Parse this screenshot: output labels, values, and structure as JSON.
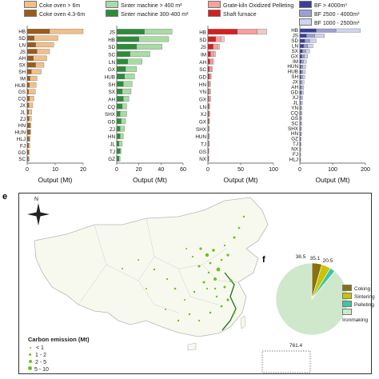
{
  "chart_data": [
    {
      "type": "bar",
      "orientation": "horizontal",
      "stacked": true,
      "legend": [
        "Coke oven > 6m",
        "Coke oven 4.3-6m"
      ],
      "colors": [
        "#f0c08a",
        "#9a5c1c"
      ],
      "categories": [
        "HB",
        "SD",
        "LN",
        "JS",
        "AH",
        "SX",
        "SH",
        "IM",
        "HUB",
        "GS",
        "CQ",
        "JX",
        "JL",
        "ZJ",
        "HN",
        "HUN",
        "HLJ",
        "FJ",
        "GD",
        "SC"
      ],
      "series": [
        {
          "name": "Coke oven 4.3-6m",
          "values": [
            8.0,
            2.5,
            3.0,
            3.5,
            2.2,
            3.0,
            1.5,
            1.0,
            0.8,
            0.5,
            0.8,
            0.6,
            0.5,
            0.7,
            1.0,
            1.0,
            0.7,
            0.5,
            0.5,
            0.4
          ]
        },
        {
          "name": "Coke oven > 6m",
          "values": [
            12.0,
            8.5,
            6.5,
            4.5,
            4.8,
            3.0,
            3.5,
            2.5,
            2.4,
            2.4,
            1.6,
            1.4,
            1.1,
            0.8,
            0.4,
            0.3,
            0.4,
            0.4,
            0.3,
            0.3
          ]
        }
      ],
      "xlim": [
        0,
        20
      ],
      "xticks": [
        "0",
        "10",
        "20"
      ],
      "xlabel": "Output (Mt)"
    },
    {
      "type": "bar",
      "orientation": "horizontal",
      "stacked": true,
      "legend": [
        "Sinter machine > 400 m²",
        "Sinter machine 300-400 m²"
      ],
      "colors": [
        "#a9dba4",
        "#2e8b3c"
      ],
      "categories": [
        "JS",
        "HB",
        "SD",
        "SC",
        "LN",
        "GX",
        "HUB",
        "SH",
        "SX",
        "AH",
        "CQ",
        "SHX",
        "GD",
        "ZJ",
        "HN",
        "JL",
        "TJ",
        "GZ"
      ],
      "series": [
        {
          "name": "Sinter machine 300-400 m²",
          "values": [
            25,
            20,
            18,
            12,
            10,
            8,
            7,
            6,
            5,
            6,
            5,
            3,
            4,
            3,
            3,
            2,
            3,
            2
          ]
        },
        {
          "name": "Sinter machine > 400 m²",
          "values": [
            25,
            27,
            23,
            18,
            13,
            10,
            9,
            8,
            8,
            5,
            4,
            6,
            4,
            4,
            3,
            3,
            1,
            1
          ]
        }
      ],
      "xlim": [
        0,
        60
      ],
      "xticks": [
        "0",
        "20",
        "40",
        "60"
      ],
      "xlabel": "Output (Mt)"
    },
    {
      "type": "bar",
      "orientation": "horizontal",
      "stacked": true,
      "legend": [
        "Grate-kiln Oxidized Pelleting",
        "Shaft furnace"
      ],
      "colors": [
        "#f6a0a0",
        "#d42020",
        "#f2c8c8"
      ],
      "categories": [
        "HB",
        "SD",
        "JS",
        "IM",
        "AH",
        "SC",
        "GD",
        "HN",
        "YN",
        "GX",
        "LN",
        "XJ",
        "GX",
        "SHX",
        "HUN",
        "TJ",
        "GS",
        "NX"
      ],
      "series": [
        {
          "name": "Shaft furnace",
          "values": [
            45,
            12,
            8,
            4,
            3,
            2,
            2,
            1,
            1,
            1,
            1,
            1,
            1,
            0.5,
            0.5,
            0.5,
            0.5,
            0.5
          ]
        },
        {
          "name": "Grate-kiln Oxidized Pelleting",
          "values": [
            30,
            8,
            7,
            5,
            4,
            3,
            2,
            2,
            2,
            2,
            1,
            1,
            1,
            1,
            1,
            1,
            0.5,
            0.5
          ]
        },
        {
          "name": "",
          "values": [
            15,
            5,
            3,
            3,
            2,
            2,
            1,
            1,
            1,
            1,
            1,
            1,
            0.5,
            0.5,
            0.5,
            0.5,
            0.5,
            0.5
          ]
        }
      ],
      "xlim": [
        0,
        100
      ],
      "xticks": [
        "0",
        "50",
        "100"
      ],
      "xlabel": "Output (Mt)"
    },
    {
      "type": "bar",
      "orientation": "horizontal",
      "stacked": true,
      "legend": [
        "BF > 4000m³",
        "BF 2500 - 4000m³",
        "BF 1000 - 2500m³"
      ],
      "colors": [
        "#3a3f9c",
        "#9aa0d4",
        "#cfd3ee"
      ],
      "categories": [
        "HB",
        "JS",
        "SD",
        "LN",
        "SX",
        "GX",
        "IM",
        "HUN",
        "HUB",
        "SH",
        "JX",
        "AH",
        "GD",
        "XJ",
        "JL",
        "YN",
        "CQ",
        "GS",
        "SC",
        "SHX",
        "HN",
        "GZ",
        "TJ",
        "NX",
        "FJ",
        "HLJ"
      ],
      "series": [
        {
          "name": "BF > 4000m³",
          "values": [
            50,
            20,
            15,
            12,
            8,
            6,
            4,
            3,
            4,
            3,
            2,
            2,
            3,
            1,
            1,
            1,
            1,
            1,
            1,
            1,
            1,
            1,
            1,
            0.5,
            0.5,
            0.5
          ]
        },
        {
          "name": "BF 2500 - 4000m³",
          "values": [
            60,
            25,
            15,
            12,
            10,
            8,
            7,
            6,
            5,
            5,
            4,
            4,
            3,
            3,
            3,
            2,
            2,
            2,
            2,
            2,
            2,
            1,
            1,
            1,
            1,
            1
          ]
        },
        {
          "name": "BF 1000 - 2500m³",
          "values": [
            75,
            30,
            20,
            16,
            12,
            10,
            9,
            9,
            8,
            7,
            7,
            6,
            5,
            5,
            4,
            4,
            4,
            3,
            3,
            2,
            2,
            2,
            2,
            2,
            1,
            1
          ]
        }
      ],
      "xlim": [
        0,
        200
      ],
      "xticks": [
        "0",
        "100",
        "200"
      ],
      "xlabel": "Output (Mt)"
    },
    {
      "type": "pie",
      "labels": [
        "Coking",
        "Sintering",
        "Pelleting",
        "Ironmaking"
      ],
      "values": [
        38.5,
        35.1,
        20.5,
        761.4
      ],
      "value_labels": [
        "38.5",
        "35.1",
        "20.5",
        "761.4"
      ],
      "colors": [
        "#8a7010",
        "#c8c400",
        "#3ec6a0",
        "#cfe8cc"
      ]
    }
  ],
  "panels": {
    "e": {
      "label": "e",
      "map_legend_title": "Carbon emission (Mt)",
      "map_legend_items": [
        "< 1",
        "1 - 2",
        "2 - 5",
        "5 - 10"
      ],
      "compass_label": "N",
      "dot_color": "#6ec01e"
    },
    "f": {
      "label": "f"
    }
  }
}
